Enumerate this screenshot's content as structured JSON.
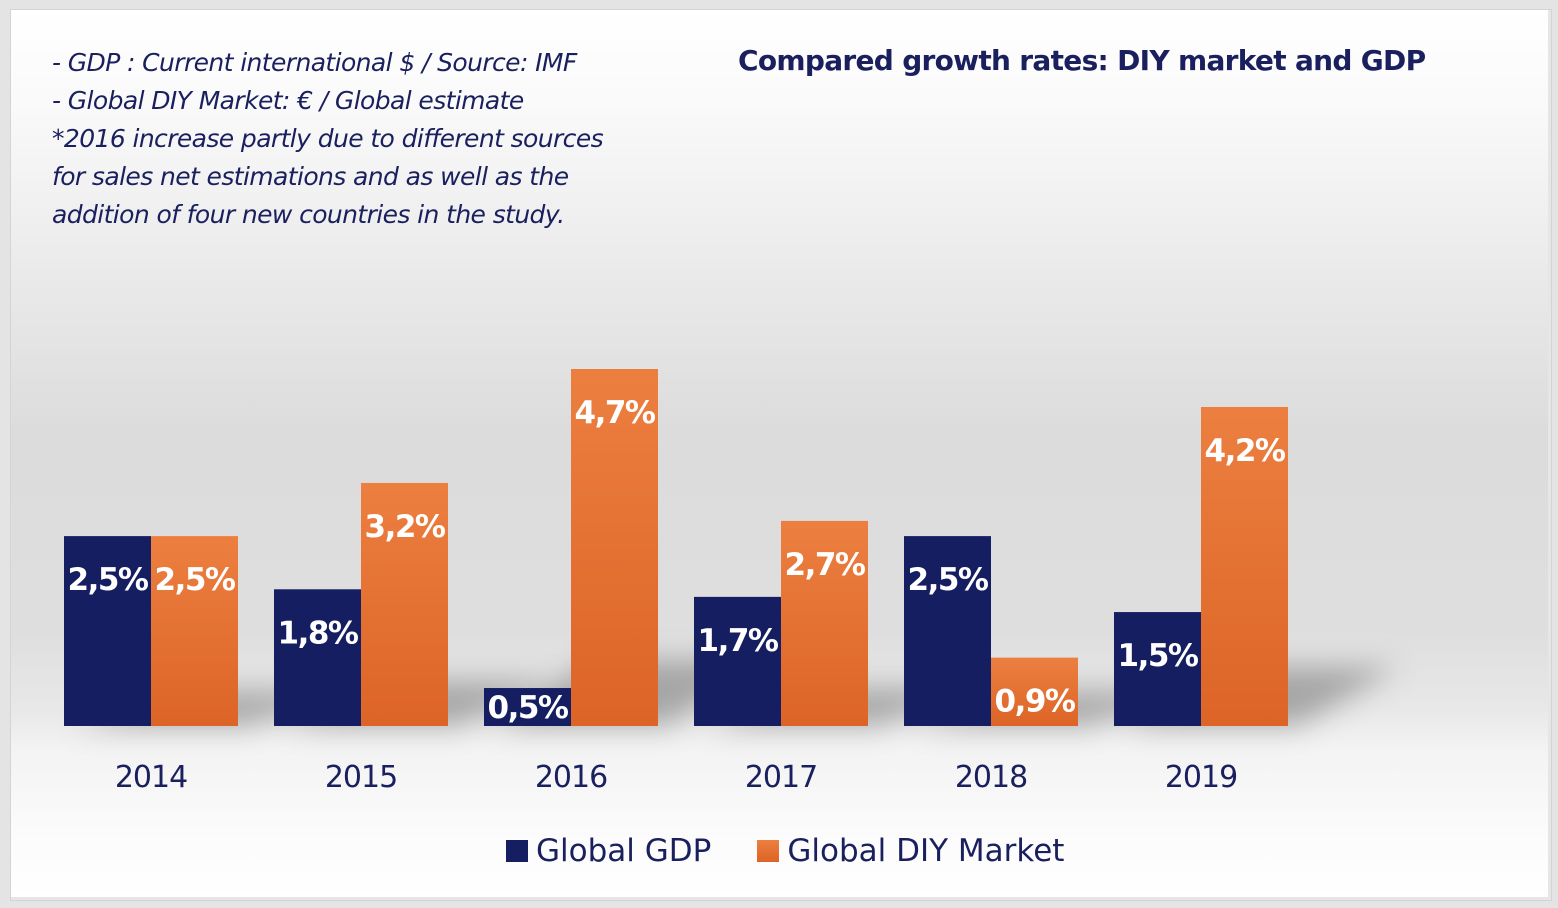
{
  "notes": [
    "- GDP : Current international $ / Source: IMF",
    "- Global DIY Market: € / Global estimate",
    "*2016 increase partly due to different sources",
    "for sales net estimations and as well as the",
    "addition of four new countries in the study."
  ],
  "colors": {
    "gdp": "#161e62",
    "diy_top": "#ec7f40",
    "diy_bottom": "#dc6426",
    "text": "#1a1f5e",
    "label": "#ffffff"
  },
  "chart_data": {
    "type": "bar",
    "title": "Compared growth rates: DIY market and GDP",
    "xlabel": "",
    "ylabel": "",
    "categories": [
      "2014",
      "2015",
      "2016",
      "2017",
      "2018",
      "2019"
    ],
    "series": [
      {
        "name": "Global GDP",
        "values": [
          2.5,
          1.8,
          0.5,
          1.7,
          2.5,
          1.5
        ],
        "labels": [
          "2,5%",
          "1,8%",
          "0,5%",
          "1,7%",
          "2,5%",
          "1,5%"
        ]
      },
      {
        "name": "Global DIY Market",
        "values": [
          2.5,
          3.2,
          4.7,
          2.7,
          0.9,
          4.2
        ],
        "labels": [
          "2,5%",
          "3,2%",
          "4,7%",
          "2,7%",
          "0,9%",
          "4,2%"
        ]
      }
    ],
    "ylim": [
      0,
      4.7
    ],
    "grid": false,
    "legend_position": "bottom-center",
    "data_labels": "inside-top"
  }
}
